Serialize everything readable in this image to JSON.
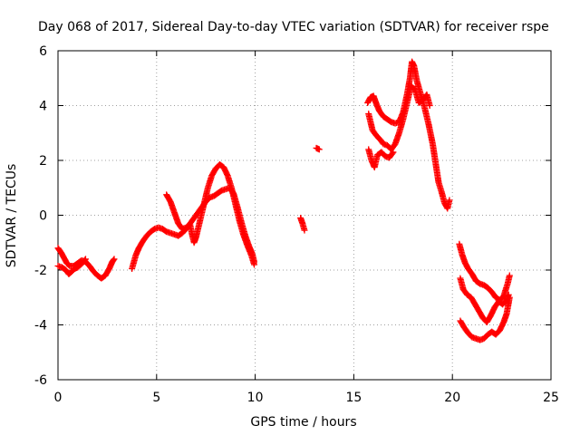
{
  "chart_data": {
    "type": "scatter",
    "title": "Day 068 of 2017, Sidereal Day-to-day VTEC variation (SDTVAR) for receiver rspe",
    "xlabel": "GPS time / hours",
    "ylabel": "SDTVAR / TECUs",
    "xlim": [
      0,
      25
    ],
    "ylim": [
      -6,
      6
    ],
    "xticks": [
      0,
      5,
      10,
      15,
      20,
      25
    ],
    "yticks": [
      -6,
      -4,
      -2,
      0,
      2,
      4,
      6
    ],
    "xtick_labels": [
      "0",
      "5",
      "10",
      "15",
      "20",
      "25"
    ],
    "ytick_labels": [
      "-6",
      "-4",
      "-2",
      "0",
      "2",
      "4",
      "6"
    ],
    "grid": true,
    "marker": "plus",
    "color": "#ff0000",
    "series": [
      {
        "points": [
          [
            0.0,
            -1.2
          ],
          [
            0.15,
            -1.35
          ],
          [
            0.3,
            -1.55
          ],
          [
            0.45,
            -1.75
          ],
          [
            0.6,
            -1.85
          ],
          [
            0.8,
            -1.85
          ],
          [
            1.0,
            -1.75
          ],
          [
            1.2,
            -1.65
          ],
          [
            1.4,
            -1.7
          ],
          [
            1.6,
            -1.85
          ],
          [
            1.8,
            -2.05
          ],
          [
            2.0,
            -2.2
          ],
          [
            2.2,
            -2.3
          ],
          [
            2.4,
            -2.2
          ],
          [
            2.6,
            -1.95
          ],
          [
            2.75,
            -1.7
          ],
          [
            2.85,
            -1.6
          ],
          [
            0.0,
            -1.85
          ],
          [
            0.2,
            -1.9
          ],
          [
            0.4,
            -2.0
          ],
          [
            0.55,
            -2.15
          ],
          [
            0.7,
            -2.05
          ],
          [
            0.85,
            -1.95
          ],
          [
            1.0,
            -1.9
          ],
          [
            1.15,
            -1.8
          ],
          [
            1.3,
            -1.7
          ],
          [
            1.4,
            -1.6
          ],
          [
            3.75,
            -1.95
          ],
          [
            3.85,
            -1.7
          ],
          [
            3.95,
            -1.45
          ],
          [
            4.1,
            -1.2
          ],
          [
            4.3,
            -0.95
          ],
          [
            4.5,
            -0.75
          ],
          [
            4.7,
            -0.6
          ],
          [
            4.9,
            -0.5
          ],
          [
            5.1,
            -0.45
          ],
          [
            5.3,
            -0.5
          ],
          [
            5.5,
            -0.6
          ],
          [
            5.7,
            -0.65
          ],
          [
            5.9,
            -0.7
          ],
          [
            6.1,
            -0.75
          ],
          [
            6.3,
            -0.65
          ],
          [
            6.5,
            -0.5
          ],
          [
            6.7,
            -0.3
          ],
          [
            6.9,
            -0.1
          ],
          [
            7.1,
            0.1
          ],
          [
            7.3,
            0.3
          ],
          [
            7.5,
            0.5
          ],
          [
            7.7,
            0.65
          ],
          [
            7.9,
            0.7
          ],
          [
            8.1,
            0.8
          ],
          [
            8.3,
            0.9
          ],
          [
            8.5,
            0.95
          ],
          [
            8.7,
            1.0
          ],
          [
            8.9,
            0.8
          ],
          [
            9.1,
            0.3
          ],
          [
            9.3,
            -0.25
          ],
          [
            9.5,
            -0.75
          ],
          [
            9.7,
            -1.15
          ],
          [
            9.85,
            -1.4
          ],
          [
            9.95,
            -1.7
          ],
          [
            5.5,
            0.75
          ],
          [
            5.7,
            0.5
          ],
          [
            5.9,
            0.1
          ],
          [
            6.1,
            -0.3
          ],
          [
            6.3,
            -0.5
          ],
          [
            6.5,
            -0.45
          ],
          [
            6.7,
            -0.35
          ],
          [
            6.8,
            -0.7
          ],
          [
            6.9,
            -1.0
          ],
          [
            7.0,
            -0.8
          ],
          [
            7.2,
            -0.2
          ],
          [
            7.4,
            0.4
          ],
          [
            7.6,
            1.0
          ],
          [
            7.8,
            1.45
          ],
          [
            8.0,
            1.7
          ],
          [
            8.2,
            1.85
          ],
          [
            8.4,
            1.75
          ],
          [
            8.6,
            1.45
          ],
          [
            8.8,
            1.0
          ],
          [
            9.0,
            0.4
          ],
          [
            9.2,
            -0.2
          ],
          [
            9.4,
            -0.7
          ],
          [
            9.6,
            -1.1
          ],
          [
            9.8,
            -1.45
          ],
          [
            9.95,
            -1.8
          ],
          [
            12.3,
            -0.1
          ],
          [
            12.4,
            -0.3
          ],
          [
            12.5,
            -0.55
          ],
          [
            13.1,
            2.45
          ],
          [
            13.25,
            2.4
          ],
          [
            15.7,
            4.1
          ],
          [
            15.85,
            4.3
          ],
          [
            16.0,
            4.35
          ],
          [
            16.15,
            4.05
          ],
          [
            16.3,
            3.8
          ],
          [
            16.5,
            3.6
          ],
          [
            16.7,
            3.5
          ],
          [
            16.9,
            3.4
          ],
          [
            17.1,
            3.35
          ],
          [
            17.3,
            3.4
          ],
          [
            17.5,
            3.75
          ],
          [
            17.7,
            4.4
          ],
          [
            17.85,
            5.0
          ],
          [
            17.95,
            5.6
          ],
          [
            18.05,
            5.45
          ],
          [
            18.2,
            4.9
          ],
          [
            18.4,
            4.4
          ],
          [
            18.6,
            3.9
          ],
          [
            18.8,
            3.3
          ],
          [
            19.0,
            2.6
          ],
          [
            19.15,
            1.9
          ],
          [
            19.3,
            1.2
          ],
          [
            19.45,
            0.85
          ],
          [
            19.6,
            0.45
          ],
          [
            19.75,
            0.25
          ],
          [
            19.85,
            0.55
          ],
          [
            15.75,
            3.7
          ],
          [
            15.95,
            3.1
          ],
          [
            16.15,
            2.9
          ],
          [
            16.35,
            2.75
          ],
          [
            16.5,
            2.6
          ],
          [
            16.7,
            2.55
          ],
          [
            16.9,
            2.4
          ],
          [
            17.1,
            2.6
          ],
          [
            17.3,
            3.0
          ],
          [
            17.5,
            3.5
          ],
          [
            17.7,
            4.1
          ],
          [
            17.9,
            4.7
          ],
          [
            18.1,
            4.6
          ],
          [
            18.3,
            4.1
          ],
          [
            18.5,
            4.2
          ],
          [
            18.7,
            4.4
          ],
          [
            18.85,
            4.0
          ],
          [
            15.75,
            2.4
          ],
          [
            15.9,
            2.0
          ],
          [
            16.05,
            1.75
          ],
          [
            16.2,
            2.2
          ],
          [
            16.4,
            2.3
          ],
          [
            16.6,
            2.15
          ],
          [
            16.8,
            2.1
          ],
          [
            17.0,
            2.3
          ],
          [
            20.35,
            -1.05
          ],
          [
            20.5,
            -1.45
          ],
          [
            20.65,
            -1.75
          ],
          [
            20.8,
            -1.95
          ],
          [
            21.0,
            -2.15
          ],
          [
            21.2,
            -2.4
          ],
          [
            21.4,
            -2.5
          ],
          [
            21.6,
            -2.55
          ],
          [
            21.8,
            -2.65
          ],
          [
            22.0,
            -2.8
          ],
          [
            22.2,
            -3.0
          ],
          [
            22.4,
            -3.1
          ],
          [
            22.6,
            -2.95
          ],
          [
            22.8,
            -2.5
          ],
          [
            22.9,
            -2.2
          ],
          [
            20.4,
            -2.3
          ],
          [
            20.55,
            -2.7
          ],
          [
            20.75,
            -2.9
          ],
          [
            20.95,
            -3.0
          ],
          [
            21.15,
            -3.25
          ],
          [
            21.35,
            -3.5
          ],
          [
            21.55,
            -3.75
          ],
          [
            21.75,
            -3.9
          ],
          [
            21.95,
            -3.65
          ],
          [
            22.15,
            -3.35
          ],
          [
            22.35,
            -3.15
          ],
          [
            22.55,
            -3.25
          ],
          [
            22.75,
            -3.1
          ],
          [
            22.85,
            -2.9
          ],
          [
            20.4,
            -3.85
          ],
          [
            20.6,
            -4.1
          ],
          [
            20.8,
            -4.3
          ],
          [
            21.0,
            -4.45
          ],
          [
            21.2,
            -4.5
          ],
          [
            21.4,
            -4.55
          ],
          [
            21.6,
            -4.5
          ],
          [
            21.8,
            -4.35
          ],
          [
            22.0,
            -4.25
          ],
          [
            22.2,
            -4.35
          ],
          [
            22.4,
            -4.2
          ],
          [
            22.6,
            -3.9
          ],
          [
            22.75,
            -3.6
          ],
          [
            22.9,
            -3.0
          ]
        ]
      }
    ]
  }
}
